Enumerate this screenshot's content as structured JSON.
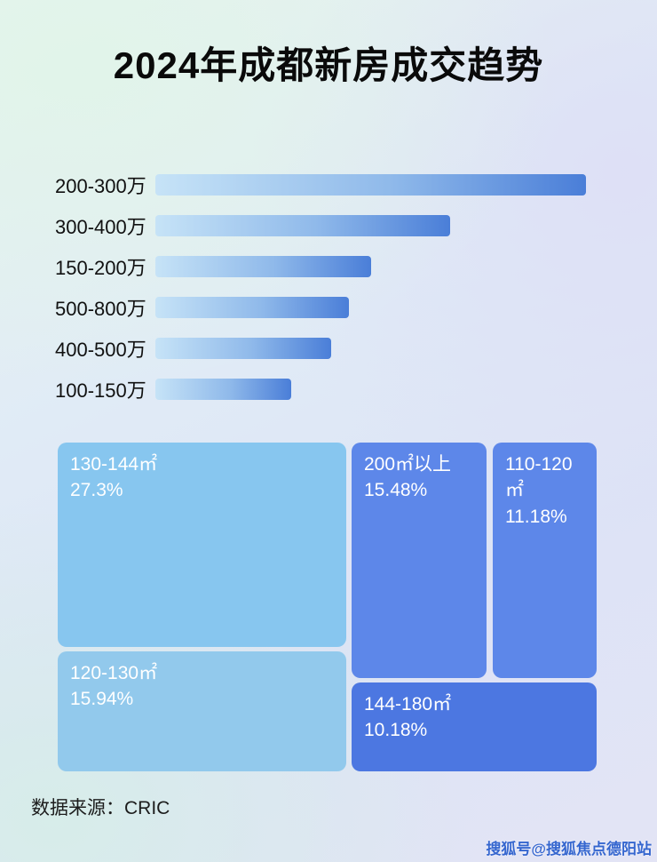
{
  "page": {
    "title": "2024年成都新房成交趋势",
    "source": "数据来源：CRIC",
    "watermark": "搜狐号@搜狐焦点德阳站"
  },
  "chart_data": [
    {
      "type": "bar",
      "orientation": "horizontal",
      "categories": [
        "200-300万",
        "300-400万",
        "150-200万",
        "500-800万",
        "400-500万",
        "100-150万"
      ],
      "values": [
        98,
        67,
        49,
        44,
        40,
        31
      ],
      "value_note": "relative bar length, percent of track; no numeric axis shown in image",
      "bar_color_gradient": [
        "#c6e3f7",
        "#4a7ed8"
      ],
      "grid": false,
      "legend": false
    },
    {
      "type": "treemap",
      "items": [
        {
          "label": "130-144㎡",
          "percent": "27.3%",
          "value": 27.3,
          "color": "#87c6ef"
        },
        {
          "label": "120-130㎡",
          "percent": "15.94%",
          "value": 15.94,
          "color": "#92c9ec"
        },
        {
          "label": "200㎡以上",
          "percent": "15.48%",
          "value": 15.48,
          "color": "#5d87e9"
        },
        {
          "label": "110-120㎡",
          "percent": "11.18%",
          "value": 11.18,
          "color": "#5d87e9"
        },
        {
          "label": "144-180㎡",
          "percent": "10.18%",
          "value": 10.18,
          "color": "#4c77e1"
        }
      ]
    }
  ]
}
